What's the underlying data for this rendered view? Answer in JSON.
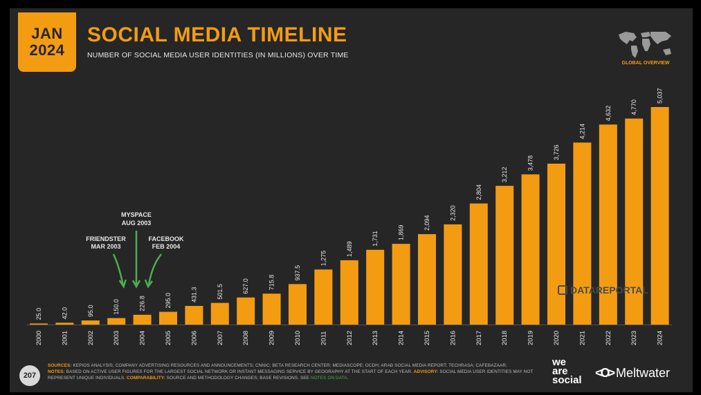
{
  "badge": {
    "month": "JAN",
    "year": "2024"
  },
  "header": {
    "title": "SOCIAL MEDIA TIMELINE",
    "subtitle": "NUMBER OF SOCIAL MEDIA USER IDENTITIES (IN MILLIONS) OVER TIME",
    "section_label": "GLOBAL OVERVIEW"
  },
  "colors": {
    "accent": "#f39c12",
    "background": "#262626",
    "annotation": "#4caf50",
    "text": "#e8e8e8"
  },
  "chart_data": {
    "type": "bar",
    "title": "SOCIAL MEDIA TIMELINE",
    "xlabel": "",
    "ylabel": "",
    "grid": false,
    "categories": [
      "2000",
      "2001",
      "2002",
      "2003",
      "2004",
      "2005",
      "2006",
      "2007",
      "2008",
      "2009",
      "2010",
      "2011",
      "2012",
      "2013",
      "2014",
      "2015",
      "2016",
      "2017",
      "2018",
      "2019",
      "2020",
      "2021",
      "2022",
      "2023",
      "2024"
    ],
    "values": [
      25.0,
      42.0,
      95.0,
      150.0,
      226.8,
      295.0,
      431.3,
      501.5,
      627.0,
      715.8,
      937.5,
      1275,
      1489,
      1731,
      1869,
      2094,
      2320,
      2804,
      3212,
      3478,
      3726,
      4214,
      4632,
      4770,
      5037
    ],
    "value_labels": [
      "25.0",
      "42.0",
      "95.0",
      "150.0",
      "226.8",
      "295.0",
      "431.3",
      "501.5",
      "627.0",
      "715.8",
      "937.5",
      "1,275",
      "1,489",
      "1,731",
      "1,869",
      "2,094",
      "2,320",
      "2,804",
      "3,212",
      "3,478",
      "3,726",
      "4,214",
      "4,632",
      "4,770",
      "5,037"
    ],
    "ylim": [
      0,
      5037
    ],
    "annotations": [
      {
        "label_line1": "FRIENDSTER",
        "label_line2": "MAR 2003",
        "year_index": 3.2
      },
      {
        "label_line1": "MYSPACE",
        "label_line2": "AUG 2003",
        "year_index": 3.6
      },
      {
        "label_line1": "FACEBOOK",
        "label_line2": "FEB 2004",
        "year_index": 4.1
      }
    ]
  },
  "watermark": "DATAREPORTAL",
  "footer": {
    "page_number": "207",
    "sources_label": "SOURCES:",
    "sources_text": " KEPIOS ANALYSIS; COMPANY ADVERTISING RESOURCES AND ANNOUNCEMENTS; CNNIC; BETA RESEARCH CENTER; MEDIASCOPE; OCDH; ARAB SOCIAL MEDIA REPORT; TECHRASA; CAFEBAZAAR.",
    "notes_label": "NOTES:",
    "notes_text": " BASED ON ACTIVE USER FIGURES FOR THE LARGEST SOCIAL NETWORK OR INSTANT MESSAGING SERVICE BY GEOGRAPHY AT THE START OF EACH YEAR.",
    "advisory_label": "ADVISORY:",
    "advisory_text": " SOCIAL MEDIA USER IDENTITIES MAY NOT REPRESENT UNIQUE INDIVIDUALS.",
    "comparability_label": "COMPARABILITY:",
    "comparability_text": " SOURCE AND METHODOLOGY CHANGES; BASE REVISIONS. SEE ",
    "notes_link": "NOTES ON DATA",
    "end_period": "."
  },
  "brands": {
    "wearesocial_line1": "we",
    "wearesocial_line2": "are",
    "wearesocial_line3": "social",
    "meltwater_icon": "<O>",
    "meltwater": "Meltwater"
  }
}
